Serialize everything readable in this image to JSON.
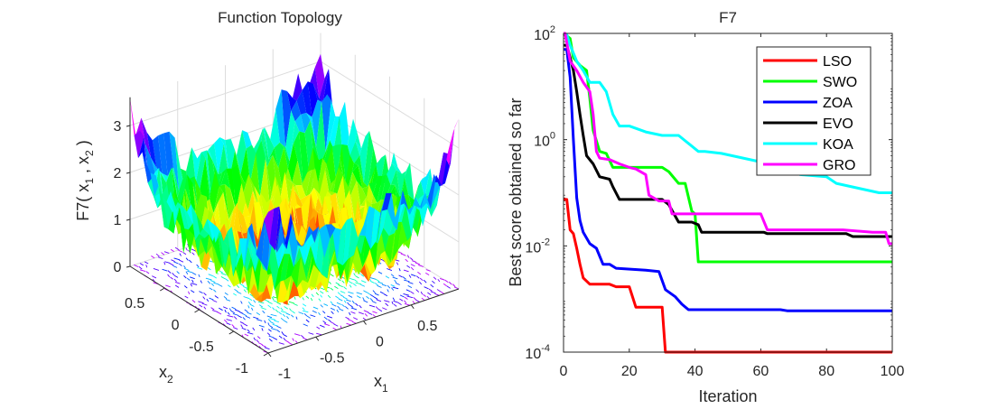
{
  "figure": {
    "left_panel": {
      "title": "Function Topology",
      "zlabel": "F7( x_1 , x_2 )",
      "zlabel_parts": {
        "prefix": "F7( x",
        "sub1": "1",
        "mid": " , x",
        "sub2": "2",
        "suffix": " )"
      },
      "xlabel_base": "x",
      "xlabel_sub": "1",
      "ylabel_base": "x",
      "ylabel_sub": "2",
      "z_ticks": [
        "0",
        "1",
        "2",
        "3"
      ],
      "x1_ticks": [
        "-1",
        "-0.5",
        "0",
        "0.5"
      ],
      "x2_ticks": [
        "-1",
        "-0.5",
        "0",
        "0.5"
      ]
    }
  },
  "chart_data": [
    {
      "type": "surface",
      "title": "Function Topology",
      "xlabel": "x1",
      "ylabel": "x2",
      "zlabel": "F7(x1, x2)",
      "xlim": [
        -1,
        1
      ],
      "ylim": [
        -1,
        1
      ],
      "zlim": [
        0,
        3.5
      ],
      "z_ticks": [
        0,
        1,
        2,
        3
      ],
      "x_ticks": [
        -1,
        -0.5,
        0,
        0.5
      ],
      "y_ticks": [
        -1,
        -0.5,
        0,
        0.5
      ],
      "colormap": "hsv-like (red low, through yellow, green, cyan, blue, magenta high)",
      "has_contour_base": true,
      "description": "Noisy bowl-shaped quartic function surface with random noise; minimum near center (~0), corners up to ~3.5"
    },
    {
      "type": "line",
      "title": "F7",
      "xlabel": "Iteration",
      "ylabel": "Best score obtained so far",
      "yscale": "log",
      "xlim": [
        0,
        100
      ],
      "ylim": [
        0.0001,
        100
      ],
      "x_ticks": [
        0,
        20,
        40,
        60,
        80,
        100
      ],
      "y_ticks": [
        {
          "base": "10",
          "exp": "-4"
        },
        {
          "base": "10",
          "exp": "-2"
        },
        {
          "base": "10",
          "exp": "0"
        },
        {
          "base": "10",
          "exp": "2"
        }
      ],
      "legend_position": "top-right",
      "series": [
        {
          "name": "LSO",
          "color": "#ff0000",
          "x": [
            1,
            2,
            3,
            4,
            5,
            6,
            8,
            14,
            16,
            20,
            22,
            30,
            31,
            100
          ],
          "values": [
            0.075,
            0.02,
            0.017,
            0.009,
            0.0045,
            0.0025,
            0.0019,
            0.0019,
            0.0017,
            0.0017,
            0.0007,
            0.0007,
            0.0001,
            0.0001
          ]
        },
        {
          "name": "SWO",
          "color": "#00ff00",
          "x": [
            1,
            2,
            3,
            5,
            7,
            8,
            9,
            11,
            13,
            15,
            30,
            32,
            35,
            37,
            39,
            40,
            41,
            100
          ],
          "values": [
            90,
            80,
            35,
            25,
            20,
            6,
            1.5,
            0.6,
            0.55,
            0.3,
            0.3,
            0.25,
            0.15,
            0.15,
            0.045,
            0.04,
            0.005,
            0.005
          ]
        },
        {
          "name": "ZOA",
          "color": "#0000ff",
          "x": [
            1,
            2,
            3,
            4,
            5,
            6,
            8,
            10,
            12,
            14,
            16,
            25,
            29,
            31,
            34,
            36,
            38,
            66,
            68,
            100
          ],
          "values": [
            50,
            15,
            1,
            0.08,
            0.03,
            0.018,
            0.011,
            0.009,
            0.0045,
            0.0045,
            0.0038,
            0.0035,
            0.0033,
            0.0015,
            0.0011,
            0.0008,
            0.00063,
            0.00063,
            0.0006,
            0.0006
          ]
        },
        {
          "name": "EVO",
          "color": "#000000",
          "x": [
            1,
            2,
            3,
            4,
            5,
            6,
            7,
            9,
            11,
            14,
            15,
            17,
            30,
            32,
            35,
            39,
            41,
            42,
            61,
            62,
            86,
            88,
            100
          ],
          "values": [
            60,
            35,
            20,
            8,
            3,
            1.2,
            0.5,
            0.35,
            0.2,
            0.18,
            0.13,
            0.075,
            0.075,
            0.06,
            0.028,
            0.028,
            0.025,
            0.018,
            0.018,
            0.017,
            0.017,
            0.015,
            0.015
          ]
        },
        {
          "name": "KOA",
          "color": "#00ffff",
          "x": [
            1,
            2,
            4,
            6,
            8,
            11,
            13,
            15,
            17,
            20,
            25,
            30,
            35,
            41,
            43,
            48,
            60,
            66,
            72,
            80,
            83,
            96,
            100
          ],
          "values": [
            95,
            60,
            30,
            20,
            12,
            12,
            8,
            3,
            1.8,
            1.8,
            1.4,
            1.2,
            1.2,
            0.6,
            0.6,
            0.55,
            0.38,
            0.35,
            0.22,
            0.2,
            0.15,
            0.1,
            0.1
          ]
        },
        {
          "name": "GRO",
          "color": "#ff00ff",
          "x": [
            0.5,
            2,
            4,
            6,
            8,
            9,
            10,
            11,
            14,
            17,
            20,
            22,
            25,
            26,
            29,
            32,
            33,
            35,
            60,
            62,
            85,
            94,
            96,
            98,
            99,
            100
          ],
          "values": [
            100,
            30,
            20,
            12,
            8,
            3,
            0.6,
            0.45,
            0.42,
            0.35,
            0.3,
            0.28,
            0.22,
            0.09,
            0.07,
            0.07,
            0.04,
            0.04,
            0.04,
            0.02,
            0.02,
            0.018,
            0.018,
            0.018,
            0.011,
            0.011
          ]
        }
      ]
    }
  ]
}
